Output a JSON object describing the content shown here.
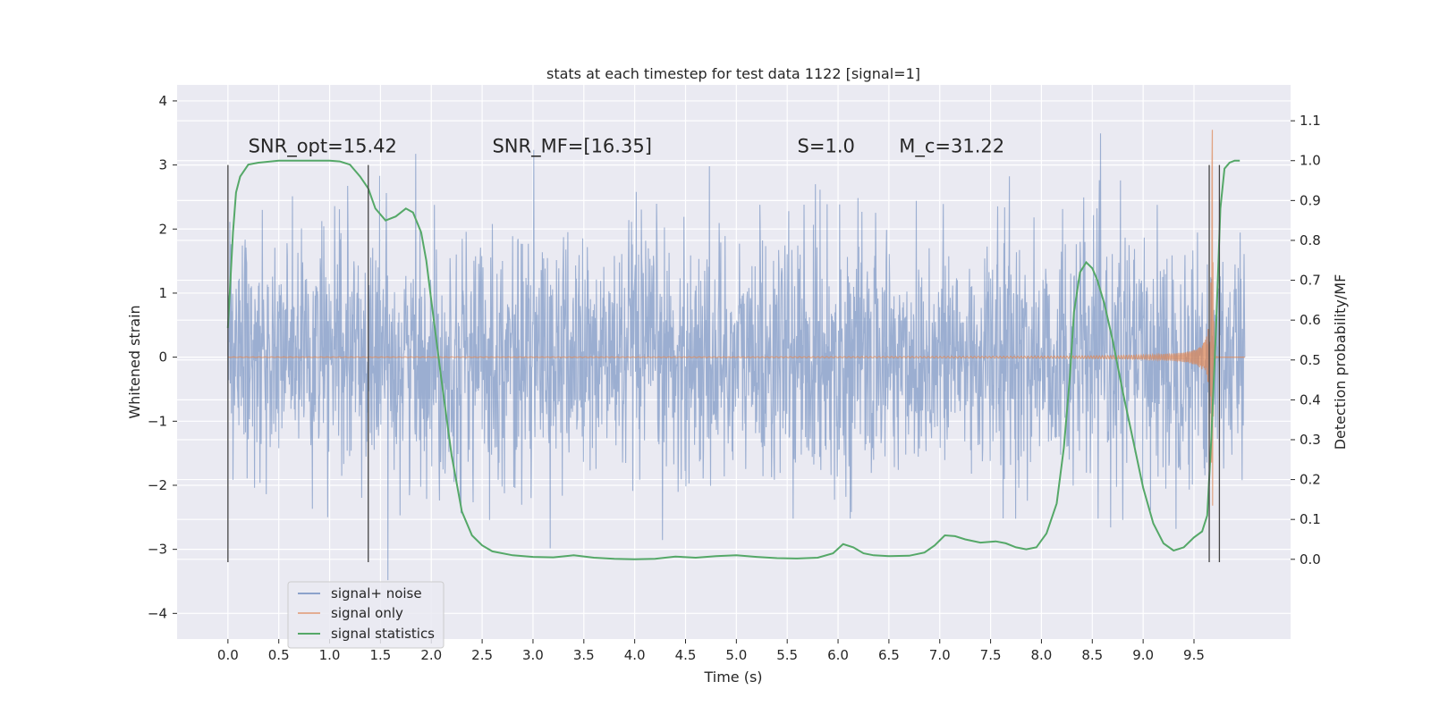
{
  "chart_data": {
    "type": "line",
    "title": "stats at each timestep for test data 1122 [signal=1]",
    "xlabel": "Time (s)",
    "ylabel": "Whitened strain",
    "ylabel_right": "Detection probability/MF",
    "xlim": [
      -0.5,
      10.45
    ],
    "ylim": [
      -4.4,
      4.25
    ],
    "ylim_right": [
      -0.2,
      1.19
    ],
    "x_ticks": [
      "0.0",
      "0.5",
      "1.0",
      "1.5",
      "2.0",
      "2.5",
      "3.0",
      "3.5",
      "4.0",
      "4.5",
      "5.0",
      "5.5",
      "6.0",
      "6.5",
      "7.0",
      "7.5",
      "8.0",
      "8.5",
      "9.0",
      "9.5"
    ],
    "y_ticks": [
      "4",
      "3",
      "2",
      "1",
      "0",
      "−1",
      "−2",
      "−3",
      "−4"
    ],
    "y_right_ticks": [
      "1.1",
      "1.0",
      "0.9",
      "0.8",
      "0.7",
      "0.6",
      "0.5",
      "0.4",
      "0.3",
      "0.2",
      "0.1",
      "0.0"
    ],
    "grid": true,
    "legend": "lower-left",
    "annotations": [
      {
        "x": 0.2,
        "y": 3.2,
        "text": "SNR_opt=15.42"
      },
      {
        "x": 2.6,
        "y": 3.2,
        "text": "SNR_MF=[16.35]"
      },
      {
        "x": 5.6,
        "y": 3.2,
        "text": "S=1.0"
      },
      {
        "x": 6.6,
        "y": 3.2,
        "text": "M_c=31.22"
      }
    ],
    "vlines": [
      {
        "x": 0.0,
        "y": [
          -3.2,
          3.0
        ]
      },
      {
        "x": 1.38,
        "y": [
          -3.2,
          3.0
        ]
      },
      {
        "x": 9.65,
        "y": [
          -3.2,
          3.0
        ]
      },
      {
        "x": 9.75,
        "y": [
          -3.2,
          3.0
        ]
      }
    ],
    "series": [
      {
        "name": "signal+ noise",
        "color": "#4c72b0",
        "kind": "noise",
        "x_range": [
          0,
          10
        ],
        "amplitude_core": 1.0,
        "peak_extent": [
          -4.05,
          3.88
        ]
      },
      {
        "name": "signal only",
        "color": "#dd8452",
        "kind": "chirp",
        "x_range": [
          0,
          10
        ],
        "peak_amplitude": 3.55,
        "merger_time": 9.68
      },
      {
        "name": "signal statistics",
        "color": "#55a868",
        "axis": "right",
        "x": [
          0.0,
          0.05,
          0.08,
          0.12,
          0.2,
          0.3,
          0.5,
          0.8,
          1.0,
          1.1,
          1.2,
          1.3,
          1.38,
          1.45,
          1.55,
          1.65,
          1.75,
          1.82,
          1.9,
          1.95,
          2.0,
          2.1,
          2.2,
          2.3,
          2.4,
          2.5,
          2.6,
          2.8,
          3.0,
          3.2,
          3.4,
          3.6,
          3.8,
          4.0,
          4.2,
          4.4,
          4.6,
          4.8,
          5.0,
          5.2,
          5.4,
          5.6,
          5.8,
          5.95,
          6.05,
          6.15,
          6.25,
          6.35,
          6.5,
          6.7,
          6.85,
          6.95,
          7.05,
          7.15,
          7.25,
          7.4,
          7.55,
          7.65,
          7.75,
          7.85,
          7.95,
          8.05,
          8.15,
          8.22,
          8.28,
          8.32,
          8.38,
          8.44,
          8.5,
          8.55,
          8.62,
          8.7,
          8.8,
          8.9,
          9.0,
          9.1,
          9.2,
          9.3,
          9.4,
          9.5,
          9.58,
          9.63,
          9.67,
          9.72,
          9.76,
          9.8,
          9.85,
          9.9,
          9.95
        ],
        "y": [
          0.58,
          0.82,
          0.92,
          0.96,
          0.99,
          0.995,
          1.0,
          1.0,
          1.0,
          0.998,
          0.99,
          0.96,
          0.93,
          0.88,
          0.85,
          0.86,
          0.88,
          0.87,
          0.82,
          0.75,
          0.65,
          0.45,
          0.26,
          0.12,
          0.06,
          0.035,
          0.02,
          0.01,
          0.006,
          0.005,
          0.01,
          0.004,
          0.001,
          0.0,
          0.001,
          0.007,
          0.004,
          0.008,
          0.01,
          0.006,
          0.003,
          0.002,
          0.004,
          0.015,
          0.038,
          0.03,
          0.015,
          0.01,
          0.008,
          0.009,
          0.017,
          0.035,
          0.06,
          0.058,
          0.05,
          0.042,
          0.045,
          0.04,
          0.03,
          0.025,
          0.03,
          0.065,
          0.14,
          0.28,
          0.46,
          0.62,
          0.72,
          0.745,
          0.73,
          0.7,
          0.64,
          0.55,
          0.42,
          0.3,
          0.18,
          0.09,
          0.04,
          0.022,
          0.03,
          0.055,
          0.07,
          0.11,
          0.3,
          0.6,
          0.88,
          0.98,
          0.995,
          1.0,
          1.0
        ]
      }
    ]
  }
}
